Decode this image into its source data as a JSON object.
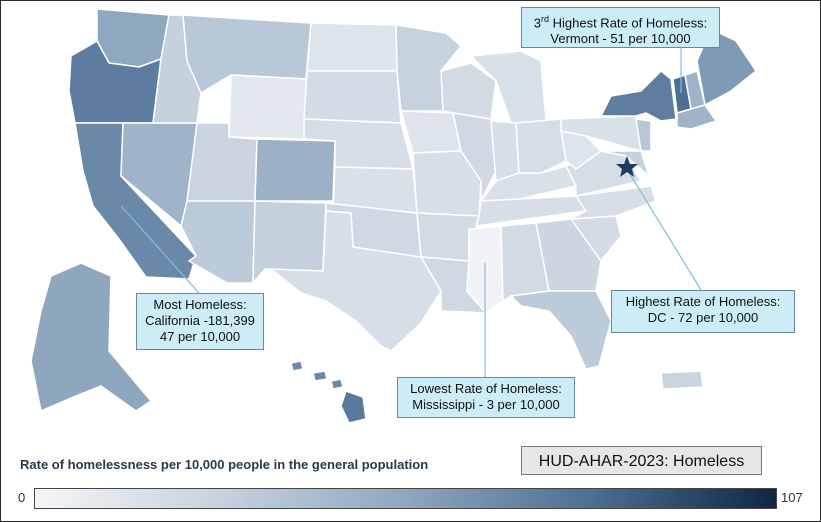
{
  "colors": {
    "border": "#2b2b2b",
    "callout_fill": "#ccecf8",
    "state_fill_lightest": "#f2f3f6",
    "state_fill_low": "#d7dfe8",
    "state_fill_mid": "#9fb4c8",
    "state_fill_high": "#5f7d9f",
    "state_border": "#ffffff",
    "star": "#1d3c60"
  },
  "callouts": {
    "vermont": {
      "line1_prefix": "3",
      "line1_sup": "rd",
      "line1_rest": " Highest Rate of Homeless:",
      "line2": "Vermont - 51 per 10,000"
    },
    "california": {
      "line1": "Most Homeless:",
      "line2": "California -181,399",
      "line3": "47 per 10,000"
    },
    "dc": {
      "line1": "Highest Rate of Homeless:",
      "line2": "DC - 72 per 10,000"
    },
    "mississippi": {
      "line1": "Lowest Rate of Homeless:",
      "line2": "Mississippi - 3 per 10,000"
    }
  },
  "legend": {
    "title": "Rate of homelessness per 10,000 people in the general population",
    "min": "0",
    "max": "107"
  },
  "source_label": "HUD-AHAR-2023: Homeless",
  "marker": {
    "icon": "star-icon",
    "label": "DC"
  },
  "states": [
    {
      "name": "Washington",
      "rate_tier": "mid"
    },
    {
      "name": "Oregon",
      "rate_tier": "high"
    },
    {
      "name": "California",
      "rate_tier": "high"
    },
    {
      "name": "Nevada",
      "rate_tier": "mid"
    },
    {
      "name": "Colorado",
      "rate_tier": "mid"
    },
    {
      "name": "New York",
      "rate_tier": "high"
    },
    {
      "name": "Vermont",
      "rate_tier": "high"
    },
    {
      "name": "Alaska",
      "rate_tier": "mid"
    },
    {
      "name": "Hawaii",
      "rate_tier": "high"
    },
    {
      "name": "Mississippi",
      "rate_tier": "lowest"
    }
  ]
}
